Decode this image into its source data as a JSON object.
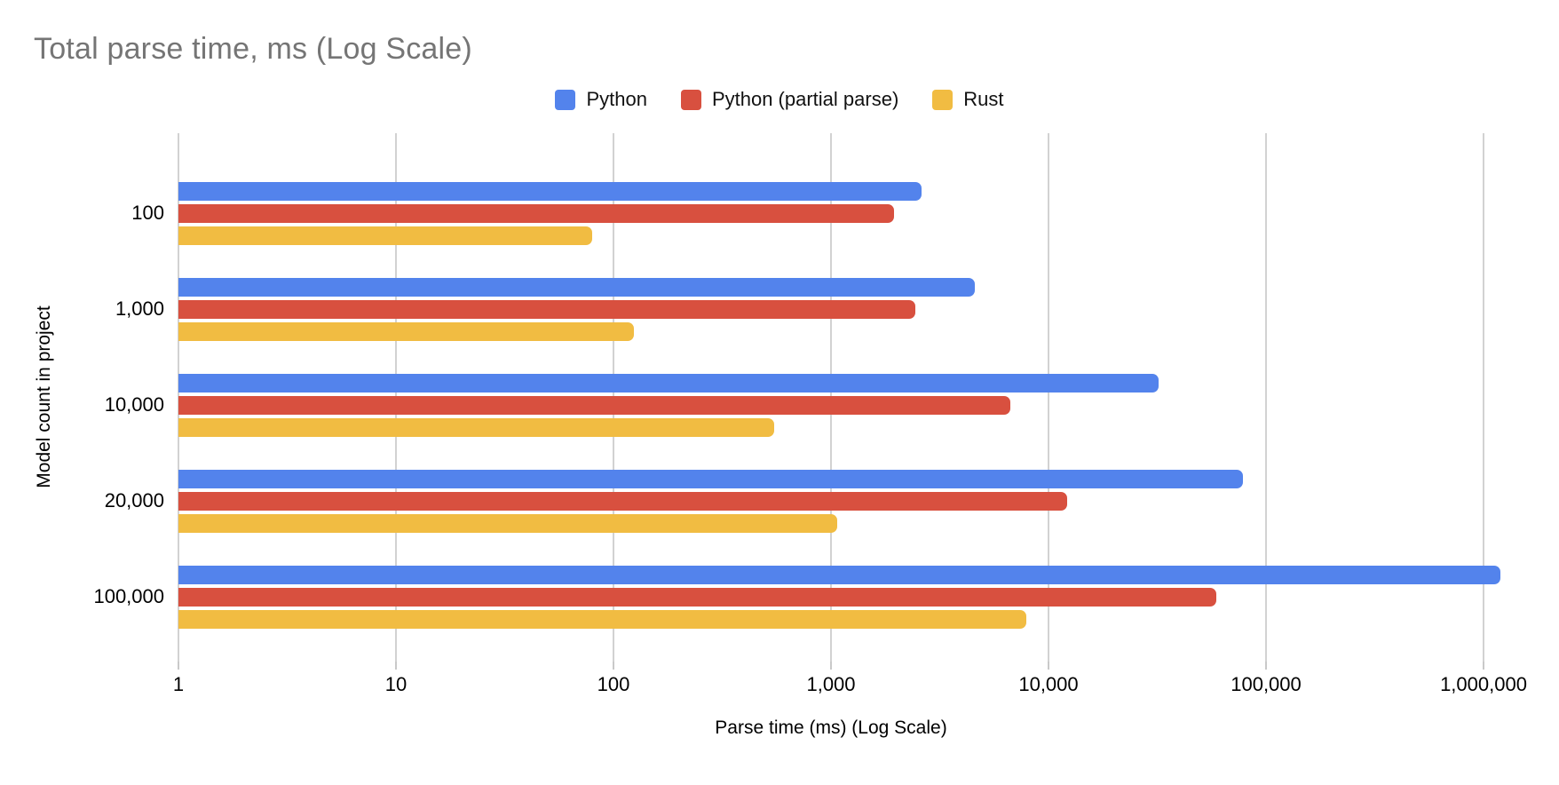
{
  "title": "Total parse time, ms (Log Scale)",
  "colors": {
    "python": "#5383EC",
    "python_partial": "#D8503F",
    "rust": "#F1BC42",
    "gridline": "#d2d2d2",
    "title_gray": "#757575"
  },
  "chart_data": {
    "type": "bar",
    "orientation": "horizontal",
    "log_scale_x": true,
    "title": "Total parse time, ms (Log Scale)",
    "xlabel": "Parse time (ms) (Log Scale)",
    "ylabel": "Model count in project",
    "categories": [
      "100",
      "1,000",
      "10,000",
      "20,000",
      "100,000"
    ],
    "series": [
      {
        "name": "Python",
        "color": "#5383EC",
        "values": [
          2600,
          4600,
          32000,
          78000,
          1200000
        ]
      },
      {
        "name": "Python (partial parse)",
        "color": "#D8503F",
        "values": [
          1950,
          2450,
          6700,
          12200,
          59000
        ]
      },
      {
        "name": "Rust",
        "color": "#F1BC42",
        "values": [
          80,
          124,
          550,
          1070,
          7900
        ]
      }
    ],
    "x_ticks": [
      "1",
      "10",
      "100",
      "1,000",
      "10,000",
      "100,000",
      "1,000,000"
    ],
    "xlim": [
      1,
      1000000
    ],
    "grid": "vertical",
    "legend_position": "top-center"
  }
}
